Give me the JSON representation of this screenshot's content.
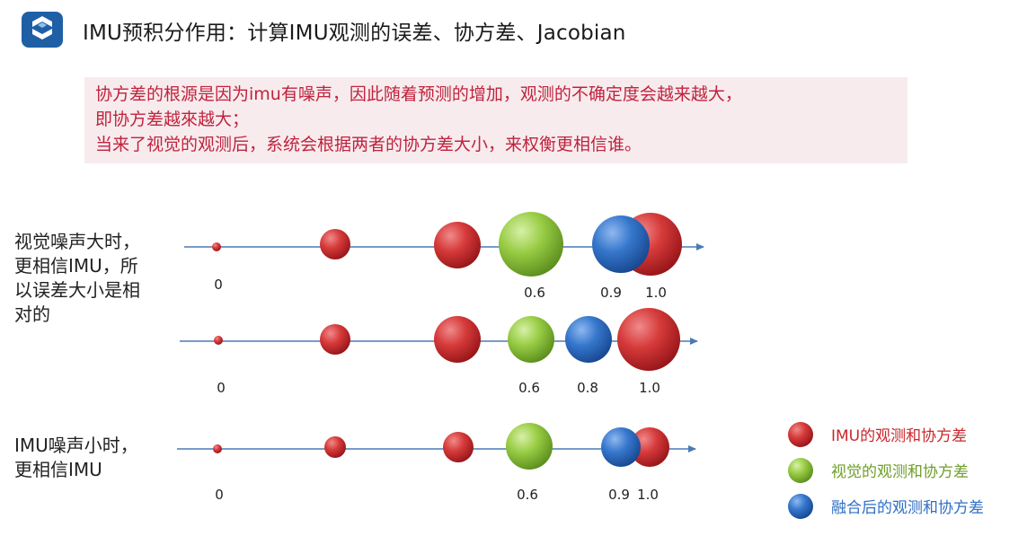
{
  "title": "IMU预积分作用：计算IMU观测的误差、协方差、Jacobian",
  "note": {
    "lines": [
      "协方差的根源是因为imu有噪声，因此随着预测的增加，观测的不确定度会越来越大，",
      "即协方差越來越大；",
      "当来了视觉的观测后，系统会根据两者的协方差大小，来权衡更相信谁。"
    ]
  },
  "row_labels": {
    "vision_noise_large": [
      "视觉噪声大时，",
      "更相信IMU，所",
      "以误差大小是相",
      "对的"
    ],
    "imu_noise_small": [
      "IMU噪声小时，",
      "更相信IMU"
    ]
  },
  "colors": {
    "imu": "#c8272b",
    "vision": "#8fc33a",
    "fused": "#2f6fc4",
    "axis": "#4a7ab5",
    "note_text": "#c0233e",
    "note_bg": "#f7ebed"
  },
  "rows": [
    {
      "name": "row-1",
      "tick_labels": [
        "0",
        "0.6",
        "0.9",
        "1.0"
      ]
    },
    {
      "name": "row-2",
      "tick_labels": [
        "0",
        "0.6",
        "0.8",
        "1.0"
      ]
    },
    {
      "name": "row-3",
      "tick_labels": [
        "0",
        "0.6",
        "0.9",
        "1.0"
      ]
    }
  ],
  "legend": [
    {
      "label": "IMU的观测和协方差",
      "color": "#c8272b"
    },
    {
      "label": "视觉的观测和协方差",
      "color": "#8fc33a"
    },
    {
      "label": "融合后的观测和协方差",
      "color": "#2f6fc4"
    }
  ]
}
